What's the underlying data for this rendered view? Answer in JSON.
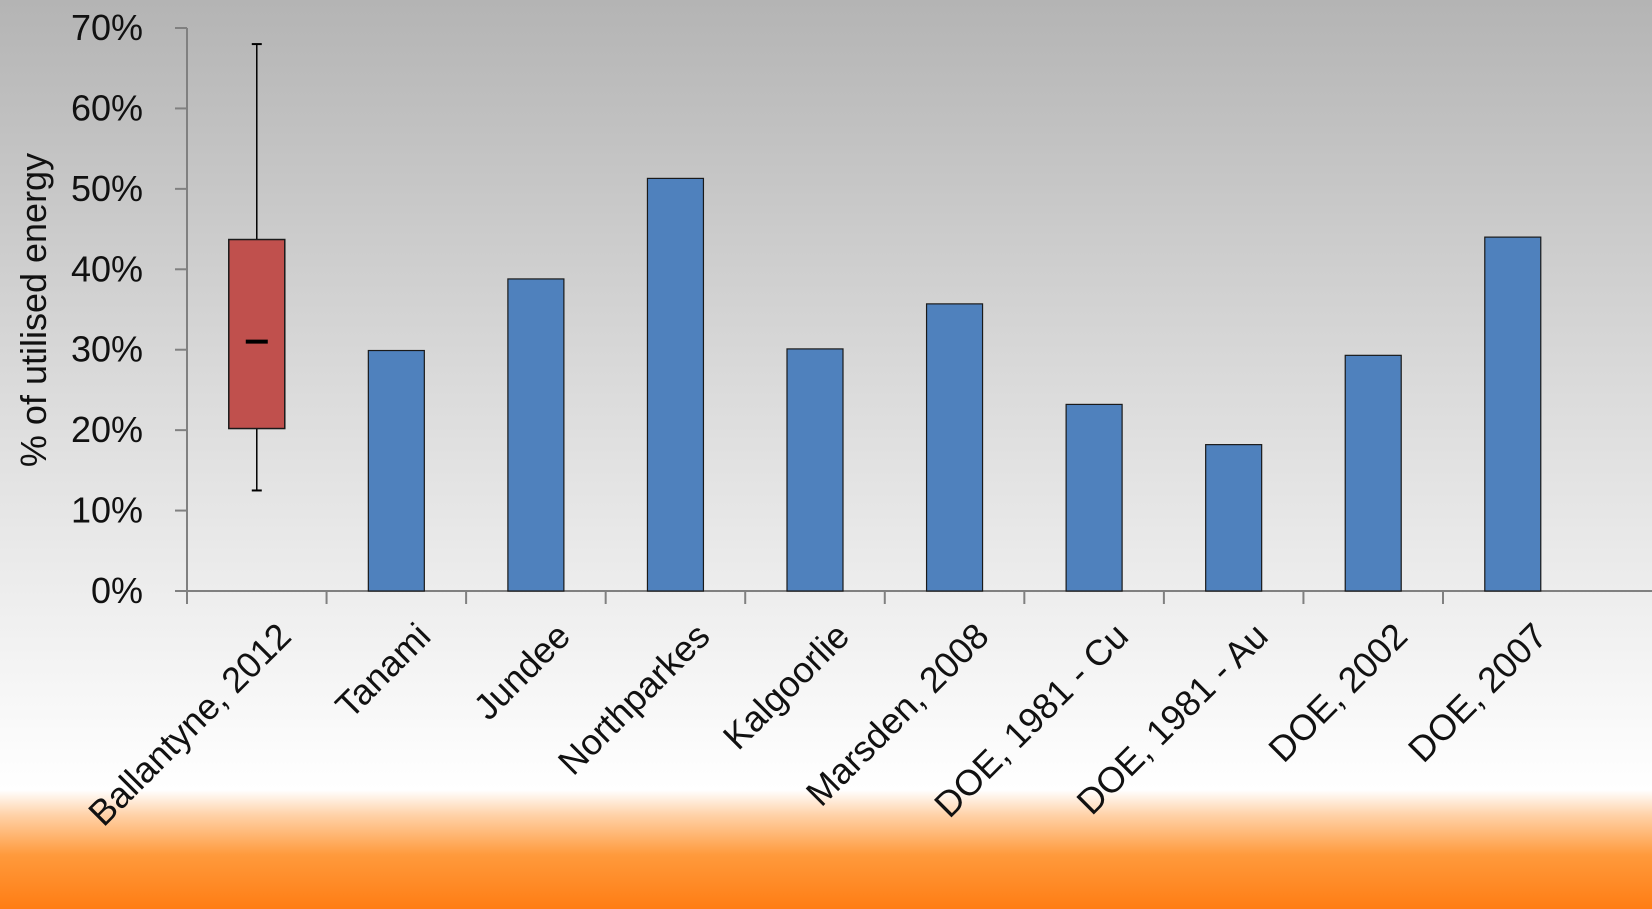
{
  "chart_data": {
    "type": "bar",
    "title": "",
    "xlabel": "",
    "ylabel": "% of utilised energy",
    "ylim": [
      0,
      70
    ],
    "y_ticks": [
      "0%",
      "10%",
      "20%",
      "30%",
      "40%",
      "50%",
      "60%",
      "70%"
    ],
    "categories": [
      "Ballantyne, 2012",
      "Tanami",
      "Jundee",
      "Northparkes",
      "Kalgoorlie",
      "Marsden, 2008",
      "DOE, 1981 - Cu",
      "DOE, 1981 - Au",
      "DOE, 2002",
      "DOE, 2007"
    ],
    "series": [
      {
        "values": [
          null,
          29.9,
          38.8,
          51.3,
          30.1,
          35.7,
          23.2,
          18.2,
          29.3,
          44.0
        ]
      }
    ],
    "boxplot": {
      "category": "Ballantyne, 2012",
      "min": 12.5,
      "q1": 20.2,
      "median": 31.0,
      "q3": 43.7,
      "max": 68.0
    },
    "colors": {
      "bar": "#4f81bd",
      "box": "#c0504d",
      "axis": "#808080"
    },
    "grid": false,
    "legend": "none"
  }
}
